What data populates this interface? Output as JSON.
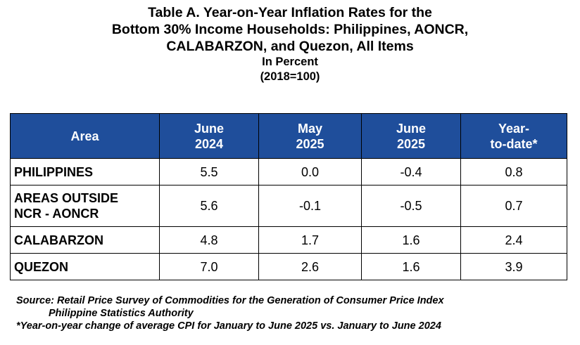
{
  "title": {
    "lines": [
      "Table A. Year-on-Year Inflation Rates for the",
      "Bottom 30% Income Households: Philippines, AONCR,",
      "CALABARZON, and Quezon, All Items"
    ],
    "unit": "In Percent",
    "base": "(2018=100)"
  },
  "table": {
    "columns": [
      {
        "line1": "Area",
        "line2": ""
      },
      {
        "line1": "June",
        "line2": "2024"
      },
      {
        "line1": "May",
        "line2": "2025"
      },
      {
        "line1": "June",
        "line2": "2025"
      },
      {
        "line1": "Year-",
        "line2": "to-date*"
      }
    ],
    "rows": [
      {
        "area_line1": "PHILIPPINES",
        "area_line2": "",
        "june_2024": "5.5",
        "may_2025": "0.0",
        "june_2025": "-0.4",
        "ytd": "0.8"
      },
      {
        "area_line1": "AREAS OUTSIDE",
        "area_line2": "NCR - AONCR",
        "june_2024": "5.6",
        "may_2025": "-0.1",
        "june_2025": "-0.5",
        "ytd": "0.7"
      },
      {
        "area_line1": "CALABARZON",
        "area_line2": "",
        "june_2024": "4.8",
        "may_2025": "1.7",
        "june_2025": "1.6",
        "ytd": "2.4"
      },
      {
        "area_line1": "QUEZON",
        "area_line2": "",
        "june_2024": "7.0",
        "may_2025": "2.6",
        "june_2025": "1.6",
        "ytd": "3.9"
      }
    ]
  },
  "notes": {
    "source_line1": "Source: Retail Price Survey of Commodities for the Generation of Consumer Price Index",
    "source_line2": "Philippine Statistics Authority",
    "footnote": "*Year-on-year change of average CPI for January to June 2025 vs. January to June 2024"
  },
  "colors": {
    "header_background": "#1f4e9b",
    "header_text": "#ffffff",
    "border": "#000000"
  }
}
